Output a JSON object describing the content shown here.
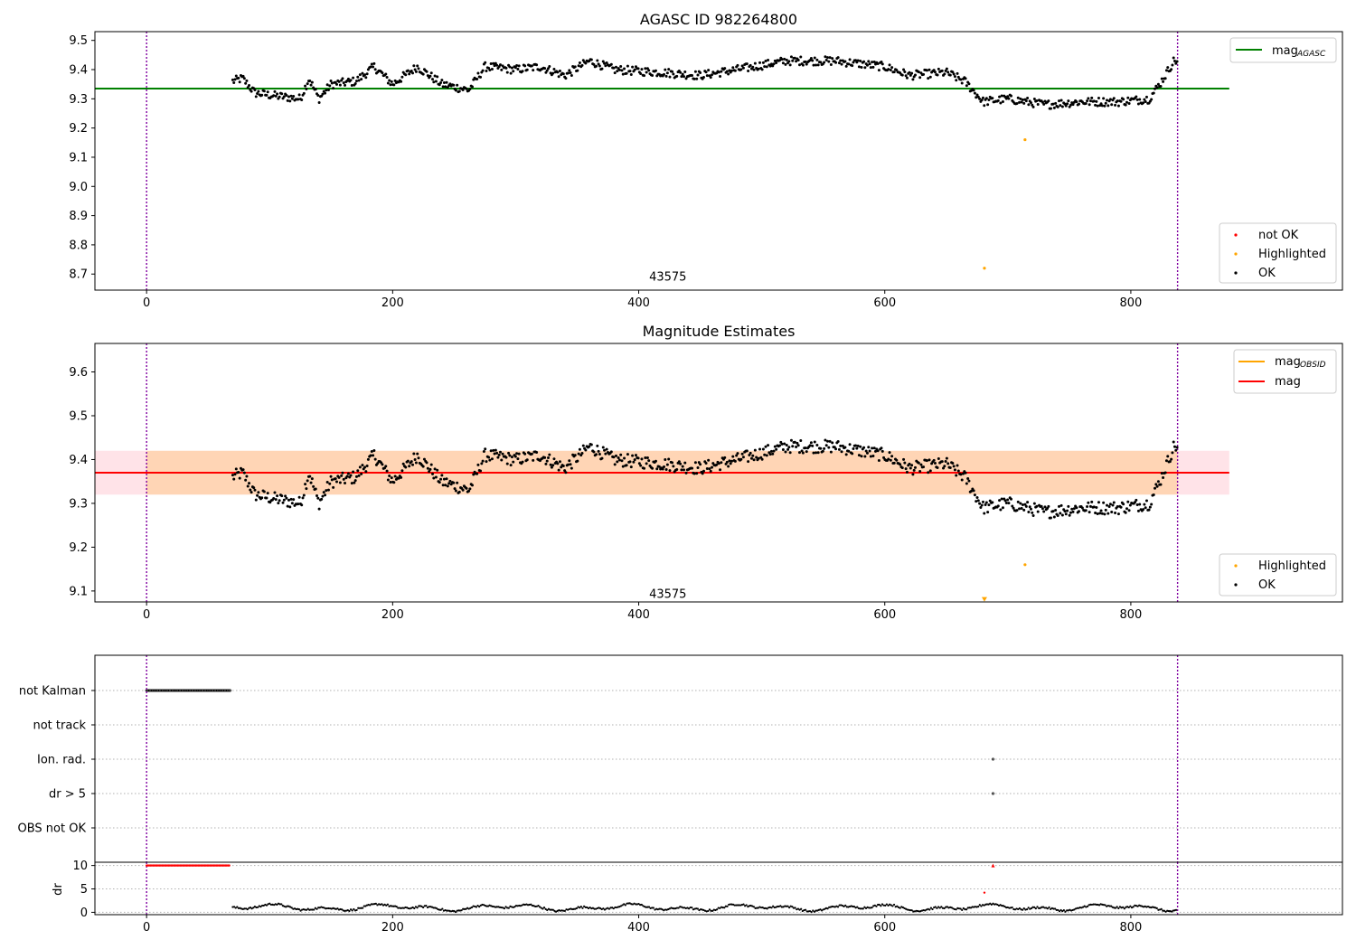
{
  "chart_data": [
    {
      "type": "scatter",
      "title": "AGASC ID 982264800",
      "xlabel": "",
      "ylabel": "",
      "xlim": [
        -42,
        972
      ],
      "ylim": [
        8.645,
        9.53
      ],
      "xticks": [
        "0",
        "200",
        "400",
        "600",
        "800"
      ],
      "yticks": [
        "8.7",
        "8.8",
        "8.9",
        "9.0",
        "9.1",
        "9.2",
        "9.3",
        "9.4",
        "9.5"
      ],
      "hlines": [
        {
          "name": "mag_AGASC",
          "value": 9.335,
          "x_range": [
            -42,
            880
          ],
          "color": "#008000"
        }
      ],
      "vlines": [
        0,
        838
      ],
      "annotation": {
        "text": "43575",
        "x": 420,
        "y": 8.69
      },
      "series": [
        {
          "name": "OK",
          "color": "#000000",
          "description": "~800 points, main trend",
          "segments": [
            [
              70,
              9.36
            ],
            [
              78,
              9.37
            ],
            [
              88,
              9.32
            ],
            [
              105,
              9.31
            ],
            [
              125,
              9.3
            ],
            [
              132,
              9.37
            ],
            [
              140,
              9.3
            ],
            [
              150,
              9.35
            ],
            [
              170,
              9.36
            ],
            [
              185,
              9.41
            ],
            [
              200,
              9.35
            ],
            [
              220,
              9.41
            ],
            [
              240,
              9.35
            ],
            [
              262,
              9.33
            ],
            [
              275,
              9.41
            ],
            [
              300,
              9.4
            ],
            [
              320,
              9.41
            ],
            [
              340,
              9.38
            ],
            [
              360,
              9.43
            ],
            [
              380,
              9.4
            ],
            [
              420,
              9.39
            ],
            [
              450,
              9.38
            ],
            [
              480,
              9.4
            ],
            [
              520,
              9.43
            ],
            [
              560,
              9.43
            ],
            [
              600,
              9.41
            ],
            [
              620,
              9.38
            ],
            [
              650,
              9.39
            ],
            [
              665,
              9.36
            ],
            [
              680,
              9.29
            ],
            [
              700,
              9.3
            ],
            [
              730,
              9.28
            ],
            [
              760,
              9.29
            ],
            [
              790,
              9.29
            ],
            [
              815,
              9.3
            ],
            [
              825,
              9.36
            ],
            [
              835,
              9.43
            ]
          ]
        },
        {
          "name": "Highlighted",
          "color": "#ffa500",
          "points": [
            [
              714,
              9.16
            ],
            [
              681,
              8.72
            ]
          ]
        },
        {
          "name": "not OK",
          "color": "#ff0000",
          "points": []
        }
      ],
      "legend": [
        {
          "label": "mag",
          "subscript": "AGASC",
          "kind": "line",
          "color": "#008000",
          "placement": "top-right"
        },
        {
          "label": "not OK",
          "kind": "marker",
          "color": "#ff0000",
          "placement": "lower-right"
        },
        {
          "label": "Highlighted",
          "kind": "marker",
          "color": "#ffa500",
          "placement": "lower-right"
        },
        {
          "label": "OK",
          "kind": "marker",
          "color": "#000000",
          "placement": "lower-right"
        }
      ]
    },
    {
      "type": "scatter",
      "title": "Magnitude Estimates",
      "xlabel": "",
      "ylabel": "",
      "xlim": [
        -42,
        972
      ],
      "ylim": [
        9.075,
        9.665
      ],
      "xticks": [
        "0",
        "200",
        "400",
        "600",
        "800"
      ],
      "yticks": [
        "9.1",
        "9.2",
        "9.3",
        "9.4",
        "9.5",
        "9.6"
      ],
      "hlines": [
        {
          "name": "mag",
          "value": 9.37,
          "x_range": [
            -42,
            880
          ],
          "color": "#ff0000"
        }
      ],
      "bands": [
        {
          "y_range": [
            9.32,
            9.42
          ],
          "x_range": [
            -42,
            880
          ],
          "color": "#ffc0cb"
        }
      ],
      "vlines": [
        0,
        838
      ],
      "annotation": {
        "text": "43575",
        "x": 420,
        "y": 9.09
      },
      "series": [
        {
          "name": "OK",
          "color": "#000000",
          "description": "same trend as panel 1"
        },
        {
          "name": "Highlighted",
          "color": "#ffa500",
          "points": [
            [
              714,
              9.16
            ],
            [
              681,
              9.08
            ]
          ]
        }
      ],
      "legend": [
        {
          "label": "mag",
          "subscript": "OBSID",
          "kind": "line",
          "color": "#ffa500",
          "placement": "top-right"
        },
        {
          "label": "mag",
          "kind": "line",
          "color": "#ff0000",
          "placement": "top-right"
        },
        {
          "label": "Highlighted",
          "kind": "marker",
          "color": "#ffa500",
          "placement": "lower-right"
        },
        {
          "label": "OK",
          "kind": "marker",
          "color": "#000000",
          "placement": "lower-right"
        }
      ]
    },
    {
      "type": "scatter",
      "title": "",
      "xlim": [
        -42,
        972
      ],
      "flag_rows": [
        "not Kalman",
        "not track",
        "Ion. rad.",
        "dr > 5",
        "OBS not OK"
      ],
      "flags": {
        "not Kalman": {
          "x_range": [
            0,
            68
          ]
        },
        "not track": {
          "x_range": []
        },
        "Ion. rad.": {
          "points": [
            688
          ]
        },
        "dr > 5": {
          "points": [
            688
          ]
        },
        "OBS not OK": {
          "points": []
        }
      },
      "vlines": [
        0,
        838
      ],
      "xticks": [
        "0",
        "200",
        "400",
        "600",
        "800"
      ]
    },
    {
      "type": "scatter",
      "title": "",
      "xlabel": "",
      "ylabel": "dr",
      "xlim": [
        -42,
        972
      ],
      "ylim": [
        -0.5,
        10.7
      ],
      "yticks": [
        "0",
        "5",
        "10"
      ],
      "xticks": [
        "0",
        "200",
        "400",
        "600",
        "800"
      ],
      "vlines": [
        0,
        838
      ],
      "series": [
        {
          "name": "dr (red)",
          "color": "#ff0000",
          "description": "saturated at 10 for x 0-68, plus points at 681 and 688"
        },
        {
          "name": "dr",
          "color": "#000000",
          "description": "oscillating 0-2 from x 70 to 838"
        }
      ]
    }
  ]
}
